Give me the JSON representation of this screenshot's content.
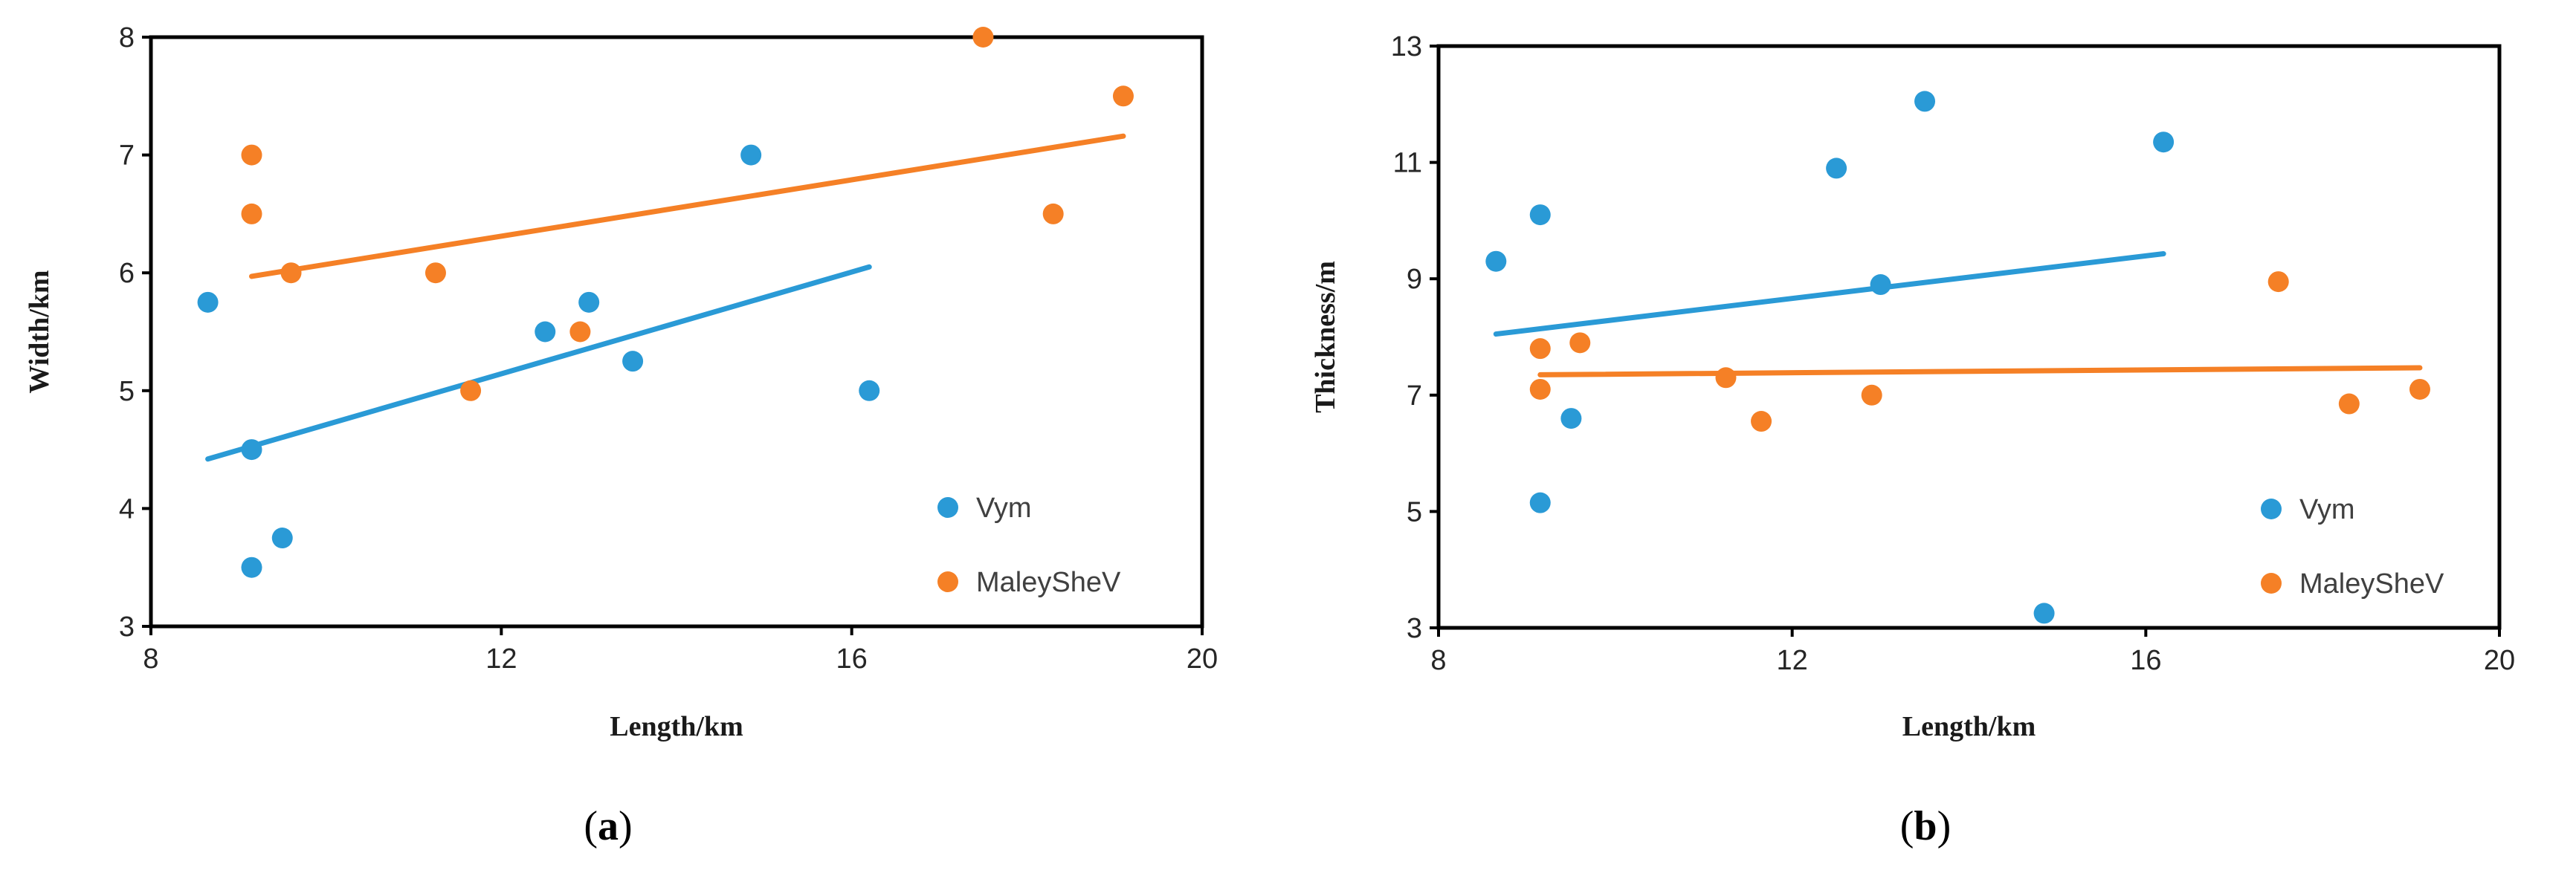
{
  "colors": {
    "vym": "#2A9AD6",
    "maleyshev": "#F58026",
    "axis": "#000000",
    "text": "#262626"
  },
  "chart_data": [
    {
      "type": "scatter",
      "panel_label": "a",
      "xlabel": "Length/km",
      "ylabel": "Width/km",
      "xlim": [
        8,
        20
      ],
      "ylim": [
        3,
        8
      ],
      "xticks": [
        8,
        12,
        16,
        20
      ],
      "yticks": [
        3,
        4,
        5,
        6,
        7,
        8
      ],
      "legend_position": "bottom-right",
      "series": [
        {
          "name": "Vym",
          "color_key": "vym",
          "x": [
            8.65,
            9.15,
            9.15,
            9.5,
            12.5,
            13.0,
            13.5,
            14.85,
            16.2
          ],
          "y": [
            5.75,
            4.5,
            3.5,
            3.75,
            5.5,
            5.75,
            5.25,
            7.0,
            5.0
          ],
          "trendline": {
            "x": [
              8.65,
              16.2
            ],
            "y": [
              4.42,
              6.05
            ]
          }
        },
        {
          "name": "MaleySheV",
          "color_key": "maleyshev",
          "x": [
            9.15,
            9.15,
            9.6,
            11.25,
            11.65,
            12.9,
            17.5,
            18.3,
            19.1
          ],
          "y": [
            7.0,
            6.5,
            6.0,
            6.0,
            5.0,
            5.5,
            8.0,
            6.5,
            7.5
          ],
          "trendline": {
            "x": [
              9.15,
              19.1
            ],
            "y": [
              5.97,
              7.16
            ]
          }
        }
      ]
    },
    {
      "type": "scatter",
      "panel_label": "b",
      "xlabel": "Length/km",
      "ylabel": "Thickness/m",
      "xlim": [
        8,
        20
      ],
      "ylim": [
        3,
        13
      ],
      "xticks": [
        8,
        12,
        16,
        20
      ],
      "yticks": [
        3,
        5,
        7,
        9,
        11,
        13
      ],
      "legend_position": "bottom-right",
      "series": [
        {
          "name": "Vym",
          "color_key": "vym",
          "x": [
            8.65,
            9.15,
            9.15,
            9.5,
            12.5,
            13.0,
            13.5,
            14.85,
            16.2
          ],
          "y": [
            9.3,
            10.1,
            5.15,
            6.6,
            10.9,
            8.9,
            12.05,
            3.25,
            11.35
          ],
          "trendline": {
            "x": [
              8.65,
              16.2
            ],
            "y": [
              8.05,
              9.43
            ]
          }
        },
        {
          "name": "MaleySheV",
          "color_key": "maleyshev",
          "x": [
            9.15,
            9.15,
            9.6,
            11.25,
            11.65,
            12.9,
            17.5,
            18.3,
            19.1
          ],
          "y": [
            7.8,
            7.1,
            7.9,
            7.3,
            6.55,
            7.0,
            8.95,
            6.85,
            7.1
          ],
          "trendline": {
            "x": [
              9.15,
              19.1
            ],
            "y": [
              7.35,
              7.47
            ]
          }
        }
      ]
    }
  ]
}
